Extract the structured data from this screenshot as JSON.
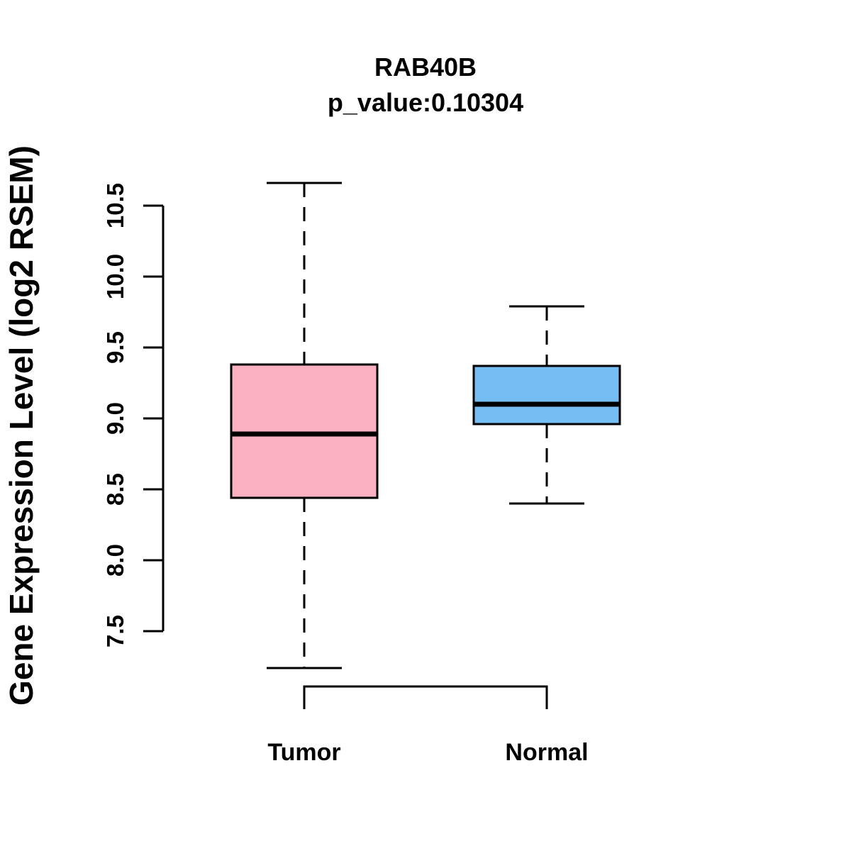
{
  "chart_data": {
    "type": "boxplot",
    "title": "RAB40B",
    "subtitle": "p_value:0.10304",
    "ylabel": "Gene Expression Level (log2 RSEM)",
    "categories": [
      "Tumor",
      "Normal"
    ],
    "yticks": [
      7.5,
      8.0,
      8.5,
      9.0,
      9.5,
      10.0,
      10.5
    ],
    "ytick_labels": [
      "7.5",
      "8.0",
      "8.5",
      "9.0",
      "9.5",
      "10.0",
      "10.5"
    ],
    "ylim": [
      7.1,
      10.75
    ],
    "grid": false,
    "legend": "none",
    "background_color": "#FFFFFF",
    "line_color": "#000000",
    "series": [
      {
        "name": "Tumor",
        "fill_color": "#FCB1C3",
        "whisker_low": 7.24,
        "q1": 8.44,
        "median": 8.89,
        "q3": 9.38,
        "whisker_high": 10.66
      },
      {
        "name": "Normal",
        "fill_color": "#74BEF4",
        "whisker_low": 8.4,
        "q1": 8.96,
        "median": 9.1,
        "q3": 9.37,
        "whisker_high": 9.79
      }
    ]
  }
}
